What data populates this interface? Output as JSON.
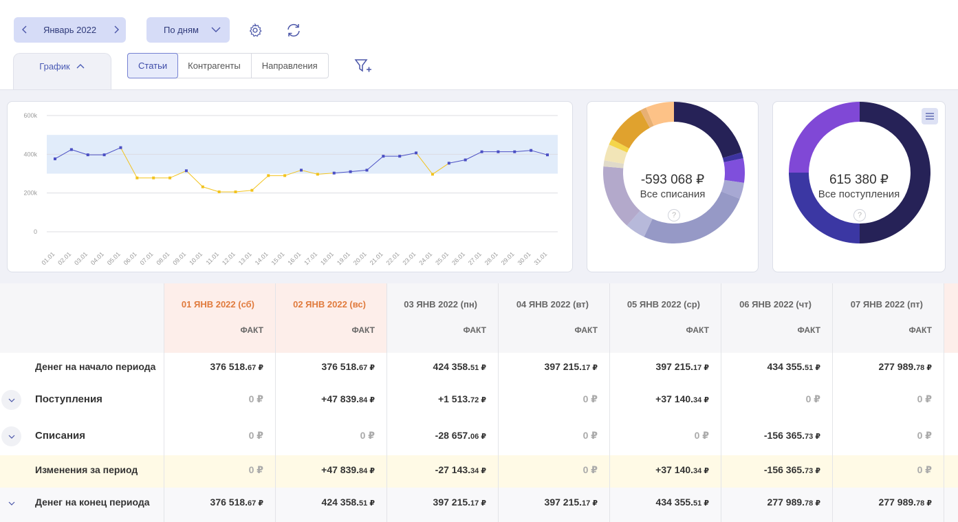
{
  "toolbar": {
    "period": "Январь 2022",
    "grouping": "По дням"
  },
  "view_tabs": {
    "graph": "График",
    "segments": [
      "Статьи",
      "Контрагенты",
      "Направления"
    ]
  },
  "chart_data": [
    {
      "type": "line",
      "title": "",
      "categories": [
        "01.01",
        "02.01",
        "03.01",
        "04.01",
        "05.01",
        "06.01",
        "07.01",
        "08.01",
        "09.01",
        "10.01",
        "11.01",
        "12.01",
        "13.01",
        "14.01",
        "15.01",
        "16.01",
        "17.01",
        "18.01",
        "19.01",
        "20.01",
        "21.01",
        "22.01",
        "23.01",
        "24.01",
        "25.01",
        "26.01",
        "27.01",
        "28.01",
        "29.01",
        "30.01",
        "31.01"
      ],
      "values": [
        376518,
        424358,
        397215,
        397215,
        434355,
        277989,
        277989,
        277989,
        315000,
        232000,
        206000,
        206000,
        214000,
        290000,
        290000,
        318000,
        297000,
        303000,
        310000,
        318000,
        390000,
        390000,
        407000,
        297000,
        354000,
        371000,
        413000,
        413000,
        413000,
        420000,
        397000
      ],
      "yticks": [
        "600k",
        "400k",
        "200k",
        "0"
      ],
      "ylim": [
        0,
        600000
      ],
      "band": [
        300000,
        500000
      ],
      "colors": {
        "normal": "#4b4fc4",
        "low": "#f2c31e",
        "band": "#e1ecfa"
      }
    },
    {
      "type": "pie",
      "title": "-593 068 ₽",
      "subtitle": "Все списания",
      "values": [
        22,
        1.5,
        6,
        4,
        28,
        5,
        16,
        1.5,
        4,
        1.5,
        10,
        1.5,
        7
      ],
      "colors": [
        "#262257",
        "#3d33a0",
        "#7f4fdc",
        "#a7a8d3",
        "#9699c6",
        "#b7b9da",
        "#b3a9cb",
        "#e0dac9",
        "#f2e5b7",
        "#f4d54a",
        "#e0a22e",
        "#e8b073",
        "#fdc287"
      ]
    },
    {
      "type": "pie",
      "title": "615 380 ₽",
      "subtitle": "Все поступления",
      "values": [
        50,
        25,
        25
      ],
      "colors": [
        "#262257",
        "#3b37a3",
        "#8048d6"
      ]
    }
  ],
  "donut1": {
    "amount": "-593 068 ₽",
    "label": "Все списания",
    "help": "?"
  },
  "donut2": {
    "amount": "615 380 ₽",
    "label": "Все поступления",
    "help": "?"
  },
  "table": {
    "columns": [
      {
        "date": "01 ЯНВ 2022 (сб)",
        "type": "ФАКТ"
      },
      {
        "date": "02 ЯНВ 2022 (вс)",
        "type": "ФАКТ"
      },
      {
        "date": "03 ЯНВ 2022 (пн)",
        "type": "ФАКТ"
      },
      {
        "date": "04 ЯНВ 2022 (вт)",
        "type": "ФАКТ"
      },
      {
        "date": "05 ЯНВ 2022 (ср)",
        "type": "ФАКТ"
      },
      {
        "date": "06 ЯНВ 2022 (чт)",
        "type": "ФАКТ"
      },
      {
        "date": "07 ЯНВ 2022 (пт)",
        "type": "ФАКТ"
      }
    ],
    "rows": [
      {
        "label": "Денег на начало периода",
        "cells": [
          {
            "main": "376 518.",
            "dec": "67 ₽"
          },
          {
            "main": "376 518.",
            "dec": "67 ₽"
          },
          {
            "main": "424 358.",
            "dec": "51 ₽"
          },
          {
            "main": "397 215.",
            "dec": "17 ₽"
          },
          {
            "main": "397 215.",
            "dec": "17 ₽"
          },
          {
            "main": "434 355.",
            "dec": "51 ₽"
          },
          {
            "main": "277 989.",
            "dec": "78 ₽"
          }
        ]
      },
      {
        "label": "Поступления",
        "cells": [
          {
            "main": "0 ₽",
            "dec": ""
          },
          {
            "main": "+47 839.",
            "dec": "84 ₽"
          },
          {
            "main": "+1 513.",
            "dec": "72 ₽"
          },
          {
            "main": "0 ₽",
            "dec": ""
          },
          {
            "main": "+37 140.",
            "dec": "34 ₽"
          },
          {
            "main": "0 ₽",
            "dec": ""
          },
          {
            "main": "0 ₽",
            "dec": ""
          }
        ]
      },
      {
        "label": "Списания",
        "cells": [
          {
            "main": "0 ₽",
            "dec": ""
          },
          {
            "main": "0 ₽",
            "dec": ""
          },
          {
            "main": "-28 657.",
            "dec": "06 ₽"
          },
          {
            "main": "0 ₽",
            "dec": ""
          },
          {
            "main": "0 ₽",
            "dec": ""
          },
          {
            "main": "-156 365.",
            "dec": "73 ₽"
          },
          {
            "main": "0 ₽",
            "dec": ""
          }
        ]
      },
      {
        "label": "Изменения за период",
        "cells": [
          {
            "main": "0 ₽",
            "dec": ""
          },
          {
            "main": "+47 839.",
            "dec": "84 ₽"
          },
          {
            "main": "-27 143.",
            "dec": "34 ₽"
          },
          {
            "main": "0 ₽",
            "dec": ""
          },
          {
            "main": "+37 140.",
            "dec": "34 ₽"
          },
          {
            "main": "-156 365.",
            "dec": "73 ₽"
          },
          {
            "main": "0 ₽",
            "dec": ""
          }
        ]
      },
      {
        "label": "Денег на конец периода",
        "cells": [
          {
            "main": "376 518.",
            "dec": "67 ₽"
          },
          {
            "main": "424 358.",
            "dec": "51 ₽"
          },
          {
            "main": "397 215.",
            "dec": "17 ₽"
          },
          {
            "main": "397 215.",
            "dec": "17 ₽"
          },
          {
            "main": "434 355.",
            "dec": "51 ₽"
          },
          {
            "main": "277 989.",
            "dec": "78 ₽"
          },
          {
            "main": "277 989.",
            "dec": "78 ₽"
          }
        ]
      }
    ]
  }
}
